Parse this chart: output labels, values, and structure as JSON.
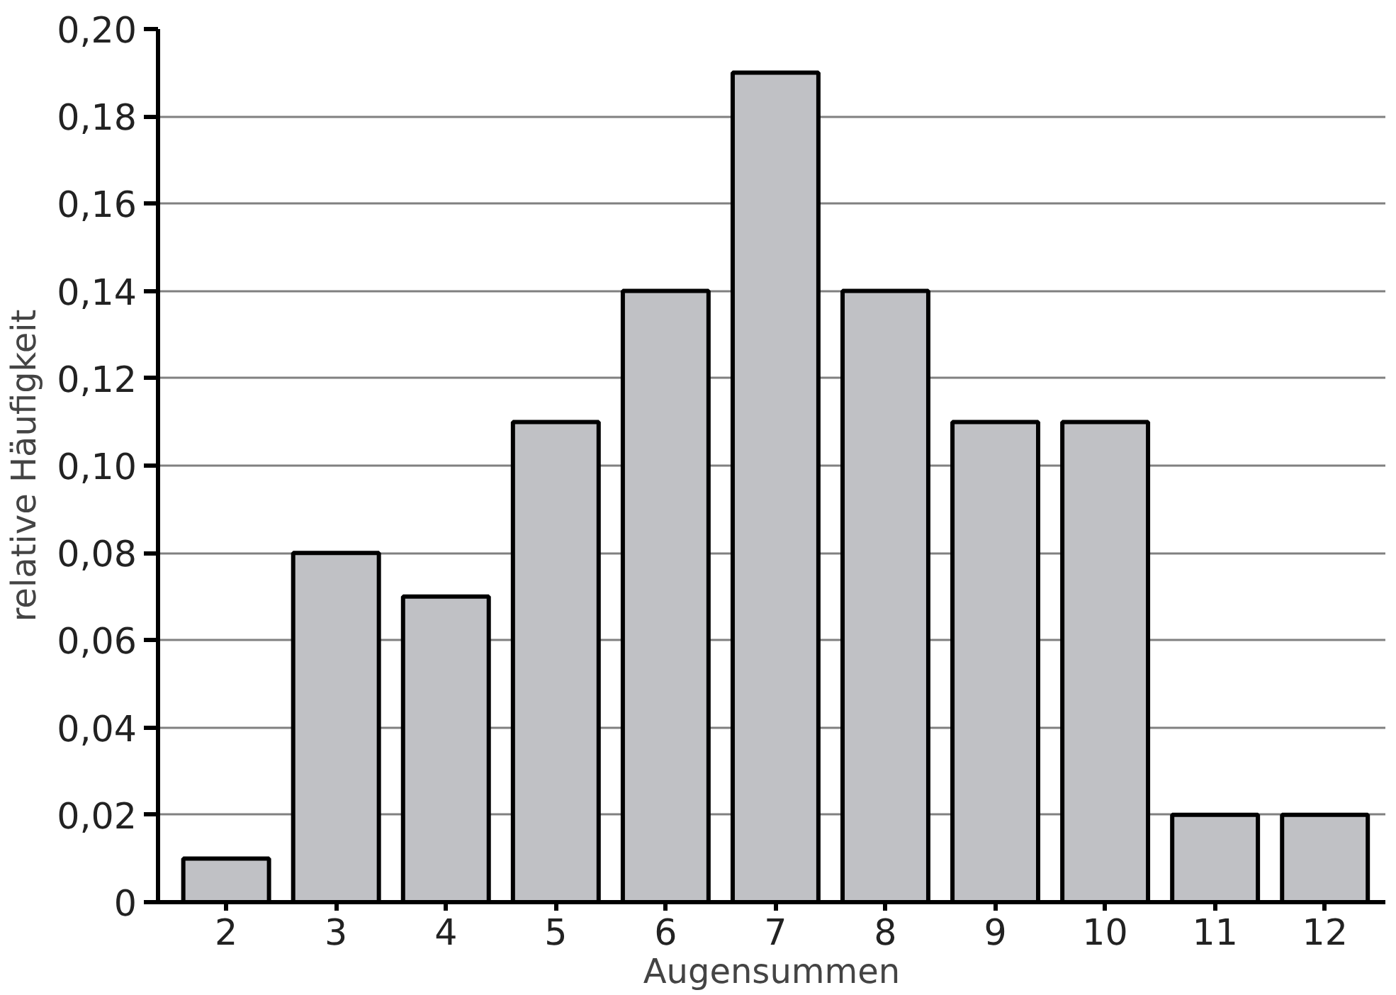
{
  "chart_data": {
    "type": "bar",
    "xlabel": "Augensummen",
    "ylabel": "relative Häufigkeit",
    "categories": [
      "2",
      "3",
      "4",
      "5",
      "6",
      "7",
      "8",
      "9",
      "10",
      "11",
      "12"
    ],
    "values": [
      0.01,
      0.08,
      0.07,
      0.11,
      0.14,
      0.19,
      0.14,
      0.11,
      0.11,
      0.02,
      0.02
    ],
    "color": "#c0c1c5",
    "ylim": [
      0,
      0.2
    ],
    "yticks": [
      0,
      {
        "value": 0.02,
        "label": "0,02"
      },
      {
        "value": 0.04,
        "label": "0,04"
      },
      {
        "value": 0.06,
        "label": "0,06"
      },
      {
        "value": 0.08,
        "label": "0,08"
      },
      {
        "value": 0.1,
        "label": "0,10"
      },
      {
        "value": 0.12,
        "label": "0,12"
      },
      {
        "value": 0.14,
        "label": "0,14"
      },
      {
        "value": 0.16,
        "label": "0,16"
      },
      {
        "value": 0.18,
        "label": "0,18"
      },
      {
        "value": 0.2,
        "label": "0,20"
      }
    ],
    "grid": "y"
  }
}
